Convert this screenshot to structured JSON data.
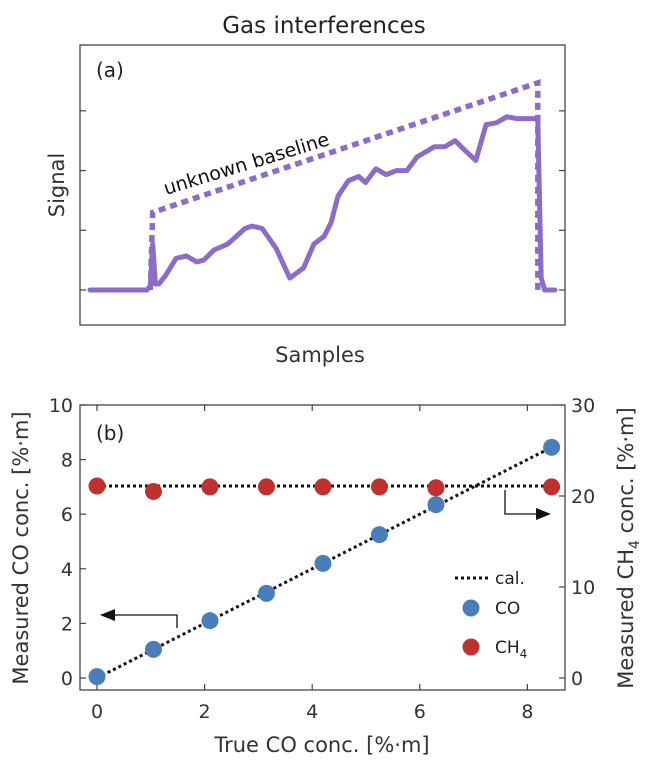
{
  "chart_data": [
    {
      "type": "line",
      "title": "Gas interferences",
      "panel_label": "(a)",
      "xlabel": "Samples",
      "ylabel": "Signal",
      "annotation": "unknown baseline",
      "line_color": "#8d6cc8",
      "tick_labels_visible": false,
      "series": [
        {
          "role": "signal",
          "style": "solid",
          "x": [
            0,
            0.5,
            1.5,
            1.65,
            1.75,
            1.82,
            1.9,
            2.0,
            2.2,
            2.5,
            2.8,
            3.1,
            3.3,
            3.6,
            4.0,
            4.5,
            4.7,
            5.0,
            5.4,
            5.8,
            6.2,
            6.5,
            6.8,
            7.0,
            7.2,
            7.5,
            7.8,
            8.0,
            8.3,
            8.6,
            8.9,
            9.2,
            9.5,
            9.8,
            10.0,
            10.3,
            10.6,
            10.9,
            11.2,
            11.5,
            11.8,
            12.1,
            12.4,
            12.7,
            12.9,
            13.0,
            13.05,
            13.1,
            13.2,
            13.5
          ],
          "y": [
            0.0,
            0.0,
            0.0,
            0.0,
            0.06,
            0.77,
            0.1,
            0.1,
            0.25,
            0.53,
            0.57,
            0.47,
            0.5,
            0.67,
            0.77,
            1.03,
            1.07,
            1.03,
            0.7,
            0.2,
            0.37,
            0.77,
            0.9,
            1.13,
            1.57,
            1.83,
            1.9,
            1.8,
            2.03,
            1.93,
            2.0,
            2.0,
            2.23,
            2.33,
            2.4,
            2.4,
            2.5,
            2.33,
            2.17,
            2.77,
            2.8,
            2.9,
            2.87,
            2.87,
            2.87,
            2.85,
            1.5,
            0.2,
            0.0,
            0.0
          ]
        },
        {
          "role": "unknown baseline",
          "style": "dotted",
          "x": [
            1.75,
            1.82,
            13.0,
            13.0
          ],
          "y": [
            0.0,
            1.3,
            3.47,
            0.0
          ]
        }
      ]
    },
    {
      "type": "scatter",
      "panel_label": "(b)",
      "xlabel": "True CO conc. [%·m]",
      "ylabel_left": "Measured CO conc. [%·m]",
      "ylabel_right_parts": [
        "Measured CH",
        "4",
        " conc. [%·m]"
      ],
      "xlim": [
        -0.4,
        8.8
      ],
      "ylim_left": [
        -0.2,
        10
      ],
      "ylim_right": [
        -0.6,
        30
      ],
      "xticks": [
        0,
        2,
        4,
        6,
        8
      ],
      "yticks_left": [
        0,
        2,
        4,
        6,
        8,
        10
      ],
      "yticks_right": [
        0,
        10,
        20,
        30
      ],
      "grid": false,
      "legend_position": "right",
      "legend": {
        "cal": "cal.",
        "co": "CO",
        "ch4_parts": [
          "CH",
          "4"
        ]
      },
      "colors": {
        "co": "#4a7ebb",
        "ch4": "#c0302e",
        "cal": "#111111"
      },
      "series": [
        {
          "name": "cal.",
          "axis": "left",
          "style": "dotted",
          "x": [
            0,
            8.5
          ],
          "y": [
            0,
            8.5
          ]
        },
        {
          "name": "cal.",
          "axis": "right",
          "style": "dotted",
          "x": [
            0,
            8.5
          ],
          "y": [
            21.1,
            21.1
          ]
        },
        {
          "name": "CO",
          "axis": "left",
          "x": [
            0,
            1.05,
            2.1,
            3.15,
            4.2,
            5.25,
            6.3,
            8.45
          ],
          "y": [
            0.05,
            1.05,
            2.1,
            3.1,
            4.2,
            5.25,
            6.35,
            8.45
          ]
        },
        {
          "name": "CH4",
          "axis": "right",
          "x": [
            0,
            1.05,
            2.1,
            3.15,
            4.2,
            5.25,
            6.3,
            8.45
          ],
          "y": [
            21.1,
            20.5,
            21.0,
            21.0,
            21.0,
            21.0,
            20.9,
            21.0
          ]
        }
      ]
    }
  ]
}
